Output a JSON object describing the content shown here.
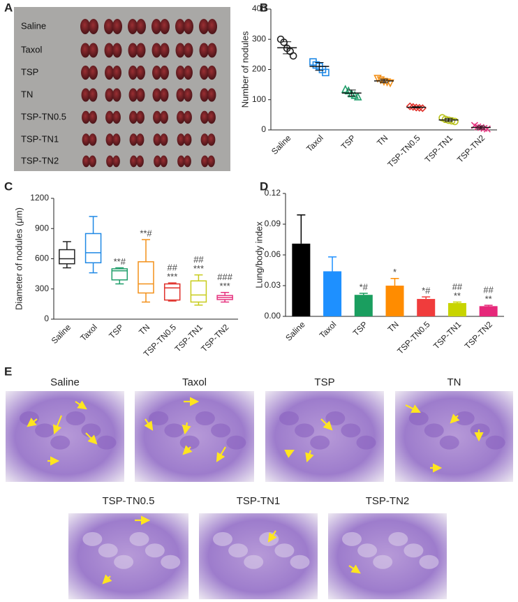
{
  "panel_labels": [
    "A",
    "B",
    "C",
    "D",
    "E"
  ],
  "photo": {
    "rows": [
      "Saline",
      "Taxol",
      "TSP",
      "TN",
      "TSP-TN0.5",
      "TSP-TN1",
      "TSP-TN2"
    ]
  },
  "chart_data": [
    {
      "type": "scatter",
      "ylabel": "Number of nodules",
      "categories": [
        "Saline",
        "Taxol",
        "TSP",
        "TN",
        "TSP-TN0.5",
        "TSP-TN1",
        "TSP-TN2"
      ],
      "ylim": [
        0,
        400
      ],
      "yticks": [
        0,
        100,
        200,
        300,
        400
      ],
      "groups": [
        {
          "color": "#222222",
          "marker": "circle",
          "values": [
            300,
            290,
            270,
            260,
            245
          ],
          "mean": 272,
          "sd": 20
        },
        {
          "color": "#1e88e5",
          "marker": "square",
          "values": [
            225,
            215,
            210,
            200,
            190
          ],
          "mean": 210,
          "sd": 13
        },
        {
          "color": "#1f9e6a",
          "marker": "triangle",
          "values": [
            135,
            130,
            120,
            115,
            110
          ],
          "mean": 122,
          "sd": 10
        },
        {
          "color": "#f39019",
          "marker": "triangle-down",
          "values": [
            170,
            165,
            160,
            158,
            155
          ],
          "mean": 162,
          "sd": 6
        },
        {
          "color": "#e0302a",
          "marker": "diamond",
          "values": [
            78,
            76,
            74,
            73,
            72
          ],
          "mean": 75,
          "sd": 2
        },
        {
          "color": "#b8c21b",
          "marker": "circle",
          "values": [
            40,
            35,
            32,
            30,
            28
          ],
          "mean": 33,
          "sd": 5
        },
        {
          "color": "#e6337f",
          "marker": "cross",
          "values": [
            15,
            10,
            8,
            5,
            3
          ],
          "mean": 8,
          "sd": 5
        }
      ]
    },
    {
      "type": "box",
      "ylabel": "Diameter of nodules (μm)",
      "categories": [
        "Saline",
        "Taxol",
        "TSP",
        "TN",
        "TSP-TN0.5",
        "TSP-TN1",
        "TSP-TN2"
      ],
      "ylim": [
        0,
        1200
      ],
      "yticks": [
        0,
        300,
        600,
        900,
        1200
      ],
      "colors": [
        "#222222",
        "#1e88e5",
        "#1f9e6a",
        "#f39019",
        "#e0302a",
        "#c8cc1b",
        "#e6337f"
      ],
      "boxes": [
        [
          510,
          550,
          600,
          690,
          770
        ],
        [
          460,
          560,
          660,
          850,
          1020
        ],
        [
          350,
          390,
          480,
          500,
          510
        ],
        [
          170,
          260,
          350,
          570,
          790
        ],
        [
          180,
          190,
          310,
          350,
          360
        ],
        [
          140,
          170,
          240,
          380,
          440
        ],
        [
          170,
          195,
          215,
          235,
          265
        ]
      ],
      "annotations": [
        [],
        [],
        [
          "**#"
        ],
        [
          "**#"
        ],
        [
          "##",
          "***"
        ],
        [
          "##",
          "***"
        ],
        [
          "###",
          "***"
        ]
      ]
    },
    {
      "type": "bar",
      "ylabel": "Lung/body index",
      "categories": [
        "Saline",
        "Taxol",
        "TSP",
        "TN",
        "TSP-TN0.5",
        "TSP-TN1",
        "TSP-TN2"
      ],
      "ylim": [
        0,
        0.12
      ],
      "yticks": [
        {
          "value": 0,
          "label": "0.00"
        },
        {
          "value": 0.03,
          "label": "0.03"
        },
        {
          "value": 0.06,
          "label": "0.06"
        },
        {
          "value": 0.09,
          "label": "0.09"
        },
        {
          "value": 0.12,
          "label": "0.12"
        }
      ],
      "colors": [
        "#000000",
        "#1e90ff",
        "#1a9e5f",
        "#ff8c00",
        "#f03c3c",
        "#c8d400",
        "#e6287a"
      ],
      "values": [
        0.071,
        0.044,
        0.021,
        0.03,
        0.017,
        0.013,
        0.01
      ],
      "errors": [
        0.028,
        0.014,
        0.0015,
        0.007,
        0.002,
        0.001,
        0.0008
      ],
      "annotations": [
        [],
        [],
        [
          "*#"
        ],
        [
          "*"
        ],
        [
          "*#"
        ],
        [
          "##",
          "**"
        ],
        [
          "##",
          "**"
        ]
      ]
    }
  ],
  "histology": {
    "labels": [
      "Saline",
      "Taxol",
      "TSP",
      "TN",
      "TSP-TN0.5",
      "TSP-TN1",
      "TSP-TN2"
    ]
  }
}
